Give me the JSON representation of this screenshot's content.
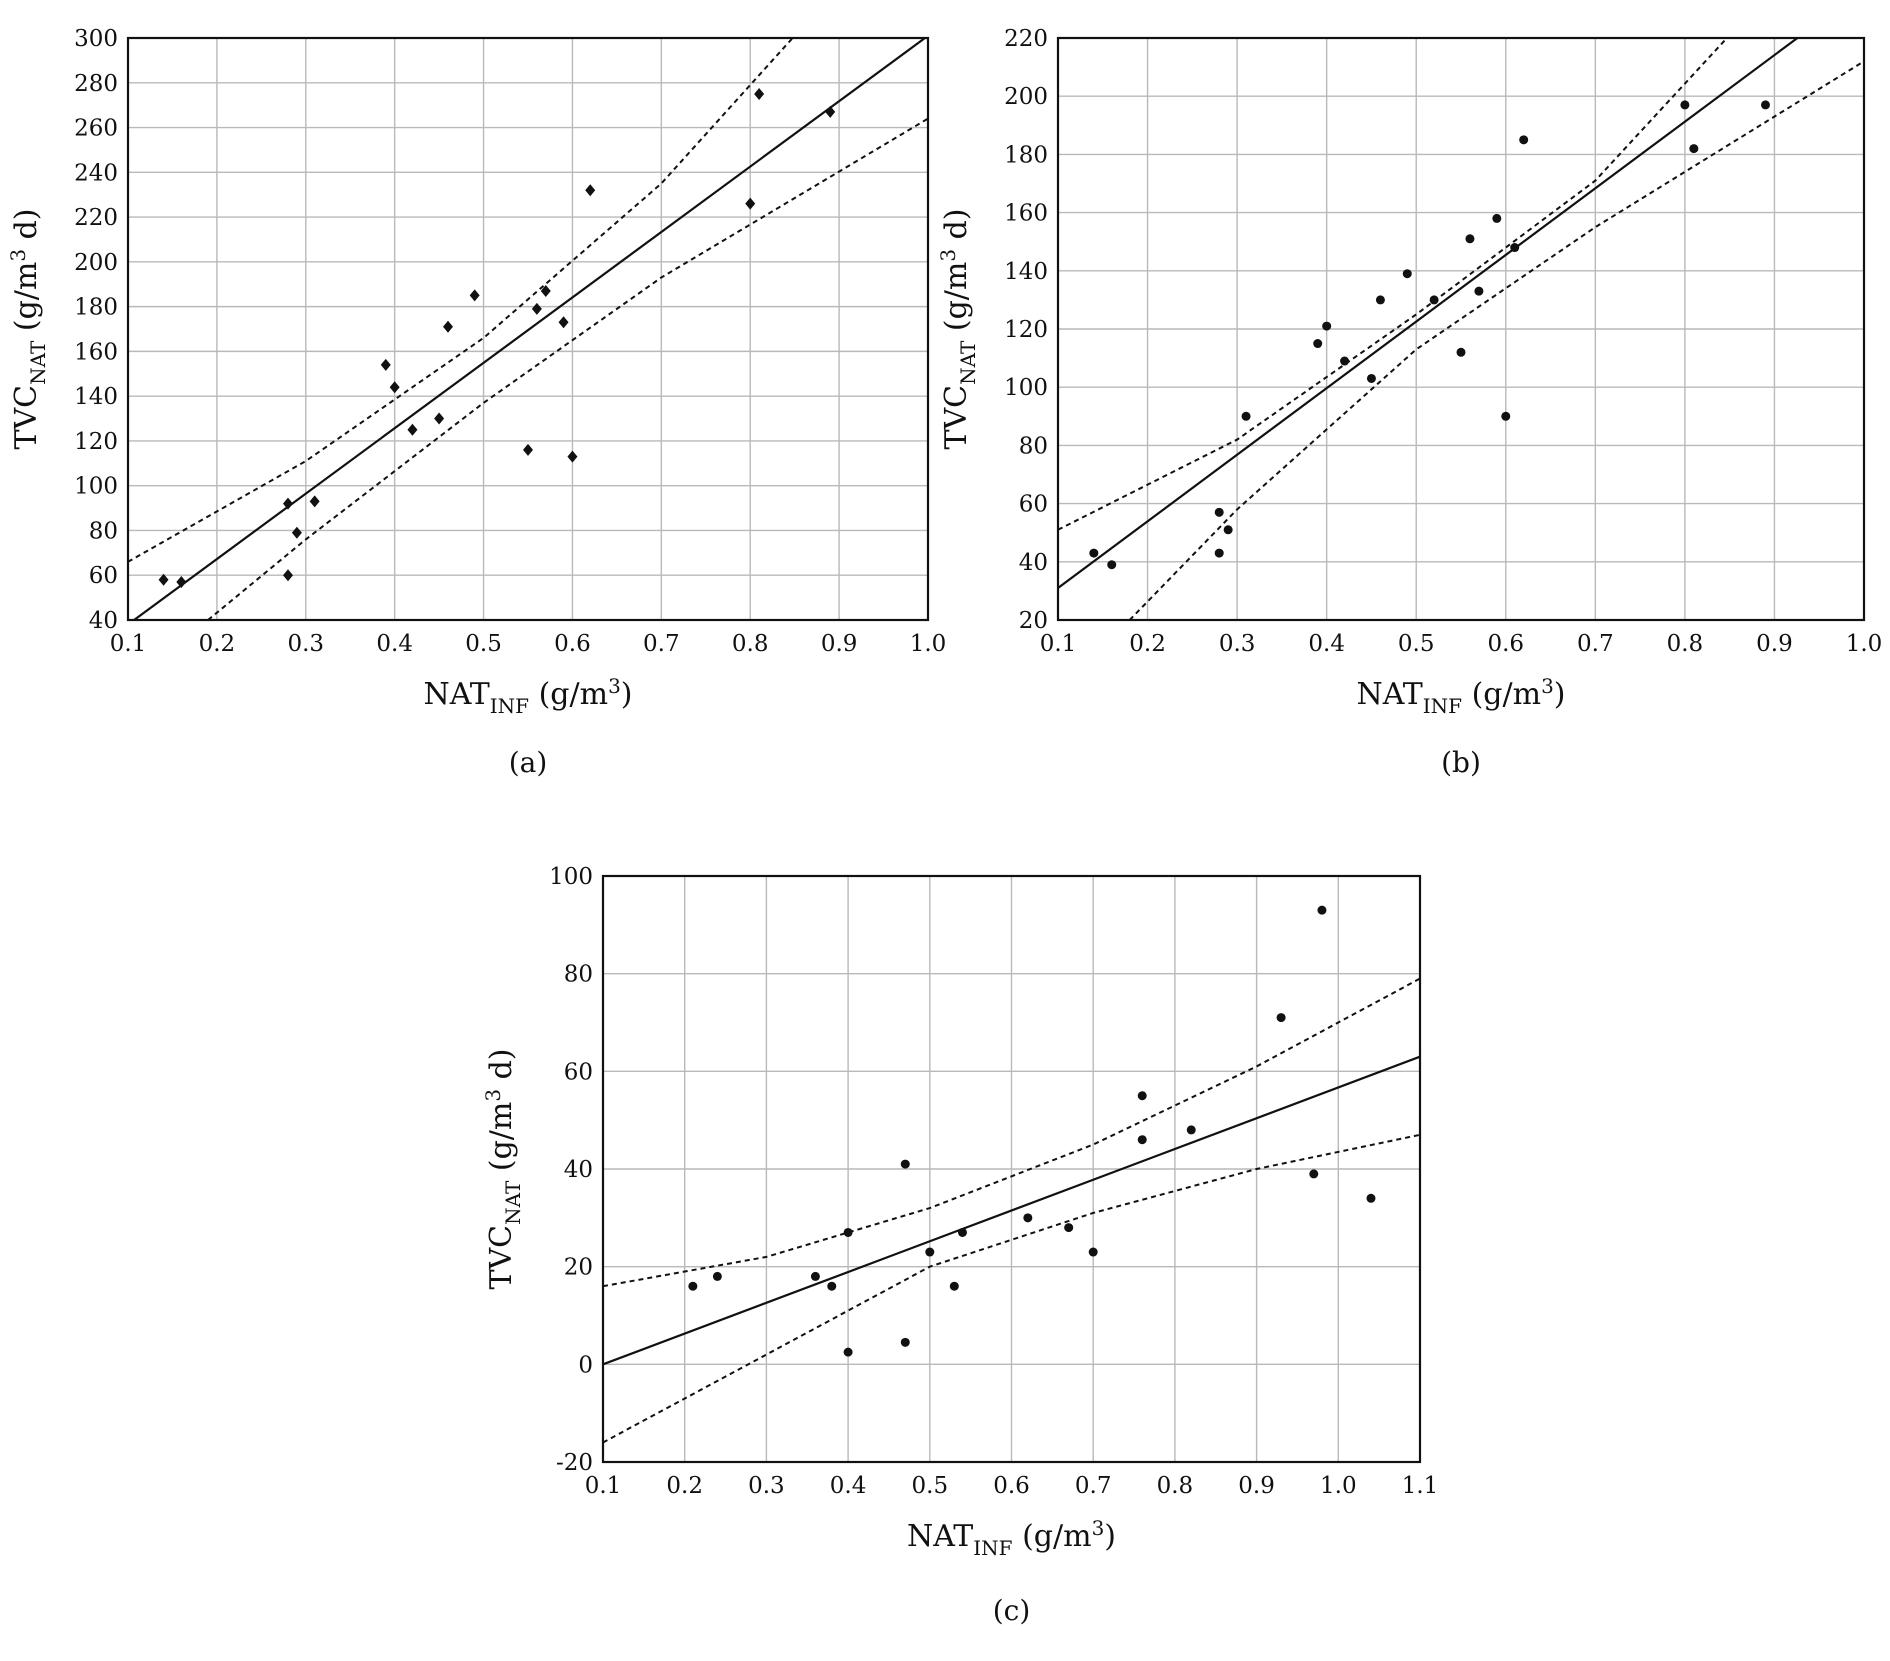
{
  "figure": {
    "panels": [
      {
        "panel_label": "(a)"
      },
      {
        "panel_label": "(b)"
      },
      {
        "panel_label": "(c)"
      }
    ]
  },
  "chart_data": [
    {
      "type": "scatter",
      "panel_label": "(a)",
      "xlabel": {
        "main": "NAT",
        "sub": "INF",
        "units": " (g/m",
        "sup": "3",
        "close": ")"
      },
      "ylabel": {
        "main": "TVC",
        "sub": "NAT",
        "units": " (g/m",
        "sup": "3",
        "close": " d)"
      },
      "xlim": [
        0.1,
        1.0
      ],
      "ylim": [
        40,
        300
      ],
      "x_ticks": [
        "0.1",
        "0.2",
        "0.3",
        "0.4",
        "0.5",
        "0.6",
        "0.7",
        "0.8",
        "0.9",
        "1.0"
      ],
      "y_ticks": [
        "40",
        "60",
        "80",
        "100",
        "120",
        "140",
        "160",
        "180",
        "200",
        "220",
        "240",
        "260",
        "280",
        "300"
      ],
      "grid": true,
      "marker": "diamond",
      "points": [
        {
          "x": 0.14,
          "y": 58
        },
        {
          "x": 0.16,
          "y": 57
        },
        {
          "x": 0.28,
          "y": 92
        },
        {
          "x": 0.28,
          "y": 60
        },
        {
          "x": 0.29,
          "y": 79
        },
        {
          "x": 0.31,
          "y": 93
        },
        {
          "x": 0.39,
          "y": 154
        },
        {
          "x": 0.4,
          "y": 144
        },
        {
          "x": 0.42,
          "y": 125
        },
        {
          "x": 0.45,
          "y": 130
        },
        {
          "x": 0.46,
          "y": 171
        },
        {
          "x": 0.49,
          "y": 185
        },
        {
          "x": 0.55,
          "y": 116
        },
        {
          "x": 0.56,
          "y": 179
        },
        {
          "x": 0.57,
          "y": 187
        },
        {
          "x": 0.59,
          "y": 173
        },
        {
          "x": 0.6,
          "y": 113
        },
        {
          "x": 0.62,
          "y": 232
        },
        {
          "x": 0.8,
          "y": 226
        },
        {
          "x": 0.81,
          "y": 275
        },
        {
          "x": 0.89,
          "y": 267
        }
      ],
      "fit_line": [
        {
          "x": 0.1,
          "y": 38
        },
        {
          "x": 1.0,
          "y": 301
        }
      ],
      "confidence_band": {
        "upper": [
          {
            "x": 0.1,
            "y": 66
          },
          {
            "x": 0.3,
            "y": 111
          },
          {
            "x": 0.5,
            "y": 166
          },
          {
            "x": 0.7,
            "y": 235
          },
          {
            "x": 0.85,
            "y": 301
          }
        ],
        "lower": [
          {
            "x": 0.19,
            "y": 40
          },
          {
            "x": 0.3,
            "y": 76
          },
          {
            "x": 0.5,
            "y": 137
          },
          {
            "x": 0.7,
            "y": 193
          },
          {
            "x": 1.0,
            "y": 264
          }
        ]
      }
    },
    {
      "type": "scatter",
      "panel_label": "(b)",
      "xlabel": {
        "main": "NAT",
        "sub": "INF",
        "units": " (g/m",
        "sup": "3",
        "close": ")"
      },
      "ylabel": {
        "main": "TVC",
        "sub": "NAT",
        "units": " (g/m",
        "sup": "3",
        "close": " d)"
      },
      "xlim": [
        0.1,
        1.0
      ],
      "ylim": [
        20,
        220
      ],
      "x_ticks": [
        "0.1",
        "0.2",
        "0.3",
        "0.4",
        "0.5",
        "0.6",
        "0.7",
        "0.8",
        "0.9",
        "1.0"
      ],
      "y_ticks": [
        "20",
        "40",
        "60",
        "80",
        "100",
        "120",
        "140",
        "160",
        "180",
        "200",
        "220"
      ],
      "grid": true,
      "marker": "circle",
      "points": [
        {
          "x": 0.14,
          "y": 43
        },
        {
          "x": 0.16,
          "y": 39
        },
        {
          "x": 0.28,
          "y": 57
        },
        {
          "x": 0.28,
          "y": 43
        },
        {
          "x": 0.29,
          "y": 51
        },
        {
          "x": 0.31,
          "y": 90
        },
        {
          "x": 0.39,
          "y": 115
        },
        {
          "x": 0.4,
          "y": 121
        },
        {
          "x": 0.42,
          "y": 109
        },
        {
          "x": 0.45,
          "y": 103
        },
        {
          "x": 0.46,
          "y": 130
        },
        {
          "x": 0.49,
          "y": 139
        },
        {
          "x": 0.52,
          "y": 130
        },
        {
          "x": 0.55,
          "y": 112
        },
        {
          "x": 0.56,
          "y": 151
        },
        {
          "x": 0.57,
          "y": 133
        },
        {
          "x": 0.59,
          "y": 158
        },
        {
          "x": 0.6,
          "y": 90
        },
        {
          "x": 0.61,
          "y": 148
        },
        {
          "x": 0.62,
          "y": 185
        },
        {
          "x": 0.8,
          "y": 197
        },
        {
          "x": 0.81,
          "y": 182
        },
        {
          "x": 0.89,
          "y": 197
        }
      ],
      "fit_line": [
        {
          "x": 0.1,
          "y": 31
        },
        {
          "x": 0.93,
          "y": 221
        }
      ],
      "confidence_band": {
        "upper": [
          {
            "x": 0.1,
            "y": 51
          },
          {
            "x": 0.3,
            "y": 82
          },
          {
            "x": 0.5,
            "y": 125
          },
          {
            "x": 0.7,
            "y": 171
          },
          {
            "x": 0.85,
            "y": 221
          }
        ],
        "lower": [
          {
            "x": 0.18,
            "y": 20
          },
          {
            "x": 0.3,
            "y": 58
          },
          {
            "x": 0.5,
            "y": 113
          },
          {
            "x": 0.7,
            "y": 155
          },
          {
            "x": 1.0,
            "y": 212
          }
        ]
      }
    },
    {
      "type": "scatter",
      "panel_label": "(c)",
      "xlabel": {
        "main": "NAT",
        "sub": "INF",
        "units": " (g/m",
        "sup": "3",
        "close": ")"
      },
      "ylabel": {
        "main": "TVC",
        "sub": "NAT",
        "units": " (g/m",
        "sup": "3",
        "close": " d)"
      },
      "xlim": [
        0.1,
        1.1
      ],
      "ylim": [
        -20,
        100
      ],
      "x_ticks": [
        "0.1",
        "0.2",
        "0.3",
        "0.4",
        "0.5",
        "0.6",
        "0.7",
        "0.8",
        "0.9",
        "1.0",
        "1.1"
      ],
      "y_ticks": [
        "-20",
        "0",
        "20",
        "40",
        "60",
        "80",
        "100"
      ],
      "grid": true,
      "marker": "circle",
      "points": [
        {
          "x": 0.21,
          "y": 16
        },
        {
          "x": 0.24,
          "y": 18
        },
        {
          "x": 0.36,
          "y": 18
        },
        {
          "x": 0.38,
          "y": 16
        },
        {
          "x": 0.4,
          "y": 27
        },
        {
          "x": 0.4,
          "y": 2.5
        },
        {
          "x": 0.47,
          "y": 41
        },
        {
          "x": 0.47,
          "y": 4.5
        },
        {
          "x": 0.5,
          "y": 23
        },
        {
          "x": 0.53,
          "y": 16
        },
        {
          "x": 0.54,
          "y": 27
        },
        {
          "x": 0.62,
          "y": 30
        },
        {
          "x": 0.67,
          "y": 28
        },
        {
          "x": 0.7,
          "y": 23
        },
        {
          "x": 0.76,
          "y": 55
        },
        {
          "x": 0.76,
          "y": 46
        },
        {
          "x": 0.82,
          "y": 48
        },
        {
          "x": 0.93,
          "y": 71
        },
        {
          "x": 0.97,
          "y": 39
        },
        {
          "x": 0.98,
          "y": 93
        },
        {
          "x": 1.04,
          "y": 34
        }
      ],
      "fit_line": [
        {
          "x": 0.1,
          "y": 0
        },
        {
          "x": 1.1,
          "y": 63
        }
      ],
      "confidence_band": {
        "upper": [
          {
            "x": 0.1,
            "y": 16
          },
          {
            "x": 0.3,
            "y": 22
          },
          {
            "x": 0.5,
            "y": 32
          },
          {
            "x": 0.7,
            "y": 45
          },
          {
            "x": 0.9,
            "y": 61
          },
          {
            "x": 1.1,
            "y": 79
          }
        ],
        "lower": [
          {
            "x": 0.1,
            "y": -16
          },
          {
            "x": 0.3,
            "y": 2
          },
          {
            "x": 0.5,
            "y": 20
          },
          {
            "x": 0.7,
            "y": 31
          },
          {
            "x": 0.9,
            "y": 40
          },
          {
            "x": 1.1,
            "y": 47
          }
        ]
      }
    }
  ]
}
